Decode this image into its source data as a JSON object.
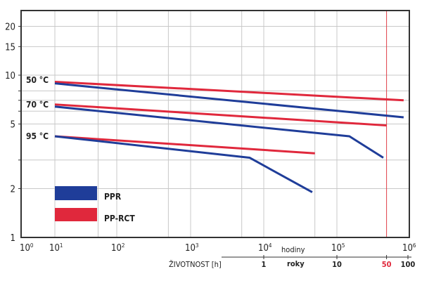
{
  "chart_data": {
    "type": "line",
    "x_scale": "log",
    "y_scale": "log",
    "xlabel": "ŽIVOTNOST [h]",
    "x_ticks": [
      {
        "base": "10",
        "exp": "0",
        "value": 1
      },
      {
        "base": "10",
        "exp": "1",
        "value": 10
      },
      {
        "base": "10",
        "exp": "2",
        "value": 100
      },
      {
        "base": "10",
        "exp": "3",
        "value": 1000
      },
      {
        "base": "10",
        "exp": "4",
        "value": 10000
      },
      {
        "base": "10",
        "exp": "5",
        "value": 100000
      },
      {
        "base": "10",
        "exp": "6",
        "value": 1000000
      }
    ],
    "x_gridlines": [
      10,
      50,
      100,
      500,
      1000,
      5000,
      10000,
      50000,
      100000
    ],
    "y_ticks": [
      "1",
      "2",
      "5",
      "10",
      "15",
      "20"
    ],
    "y_gridlines": [
      2,
      3,
      5,
      6,
      7,
      8,
      10,
      15,
      20
    ],
    "ylim": [
      1,
      24
    ],
    "xlim": [
      1,
      1000000
    ],
    "grid": true,
    "secondary_axis": {
      "unit_hours": "hodiny",
      "unit_years": "roky",
      "labels": [
        {
          "text": "1",
          "hours": 10000
        },
        {
          "text": "10",
          "hours": 100000
        },
        {
          "text": "50",
          "hours": 500000,
          "highlight": true
        },
        {
          "text": "100",
          "hours": 1000000
        }
      ]
    },
    "marker_line": {
      "hours": 500000,
      "color": "#e0404a"
    },
    "temperature_labels": [
      "50 °C",
      "70 °C",
      "95 °C"
    ],
    "legend": {
      "placement": "bottom-left",
      "items": [
        {
          "name": "PPR",
          "color": "#1f3d99"
        },
        {
          "name": "PP-RCT",
          "color": "#e0283c"
        }
      ]
    },
    "series": [
      {
        "material": "PP-RCT",
        "temp": "50 °C",
        "color": "#e0283c",
        "points": [
          [
            10,
            9.1
          ],
          [
            870000,
            7.0
          ]
        ]
      },
      {
        "material": "PPR",
        "temp": "50 °C",
        "color": "#1f3d99",
        "points": [
          [
            10,
            8.9
          ],
          [
            870000,
            5.5
          ]
        ]
      },
      {
        "material": "PP-RCT",
        "temp": "70 °C",
        "color": "#e0283c",
        "points": [
          [
            10,
            6.6
          ],
          [
            500000,
            4.9
          ]
        ]
      },
      {
        "material": "PPR",
        "temp": "70 °C",
        "color": "#1f3d99",
        "points": [
          [
            10,
            6.4
          ],
          [
            150000,
            4.2
          ],
          [
            450000,
            3.1
          ]
        ]
      },
      {
        "material": "PP-RCT",
        "temp": "95 °C",
        "color": "#e0283c",
        "points": [
          [
            10,
            4.2
          ],
          [
            50000,
            3.3
          ]
        ]
      },
      {
        "material": "PPR",
        "temp": "95 °C",
        "color": "#1f3d99",
        "points": [
          [
            10,
            4.2
          ],
          [
            6400,
            3.1
          ],
          [
            46000,
            1.9
          ]
        ]
      }
    ]
  }
}
